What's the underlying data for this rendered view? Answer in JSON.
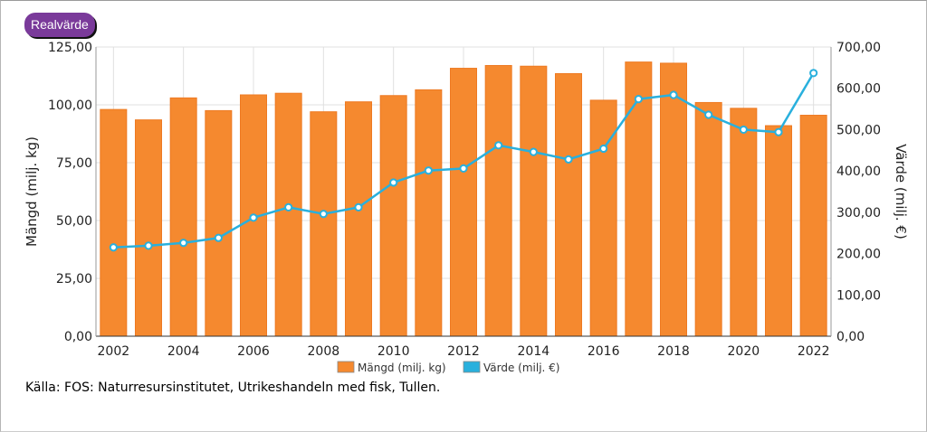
{
  "toggle": {
    "label": "Realvärde"
  },
  "source": "Källa: FOS: Naturresursinstitutet, Utrikeshandeln med fisk, Tullen.",
  "colors": {
    "bars": "#f5892f",
    "line": "#29b0dd",
    "grid": "#e0e0e0"
  },
  "chart_data": {
    "type": "bar",
    "categories": [
      "2002",
      "2003",
      "2004",
      "2005",
      "2006",
      "2007",
      "2008",
      "2009",
      "2010",
      "2011",
      "2012",
      "2013",
      "2014",
      "2015",
      "2016",
      "2017",
      "2018",
      "2019",
      "2020",
      "2021",
      "2022"
    ],
    "x_tick_labels": [
      "2002",
      "2004",
      "2006",
      "2008",
      "2010",
      "2012",
      "2014",
      "2016",
      "2018",
      "2020",
      "2022"
    ],
    "ylabel": "Mängd (milj. kg)",
    "y2label": "Värde (milj. €)",
    "ylim": [
      0,
      125
    ],
    "y2lim": [
      0,
      700
    ],
    "y_ticks": [
      "0,00",
      "25,00",
      "50,00",
      "75,00",
      "100,00",
      "125,00"
    ],
    "y2_ticks": [
      "0,00",
      "100,00",
      "200,00",
      "300,00",
      "400,00",
      "500,00",
      "600,00",
      "700,00"
    ],
    "grid": true,
    "legend_position": "bottom",
    "series": [
      {
        "name": "Mängd (milj. kg)",
        "type": "bar",
        "axis": "left",
        "values": [
          98.0,
          93.5,
          103.0,
          97.5,
          104.3,
          105.0,
          97.0,
          101.3,
          104.0,
          106.5,
          115.8,
          117.0,
          116.7,
          113.5,
          102.0,
          118.5,
          118.0,
          101.0,
          98.5,
          91.0,
          95.5
        ]
      },
      {
        "name": "Värde (milj. €)",
        "type": "line",
        "axis": "right",
        "values": [
          215,
          219,
          226,
          238,
          287,
          312,
          296,
          312,
          372,
          401,
          406,
          462,
          446,
          428,
          454,
          574,
          584,
          536,
          500,
          494,
          637
        ]
      }
    ]
  }
}
